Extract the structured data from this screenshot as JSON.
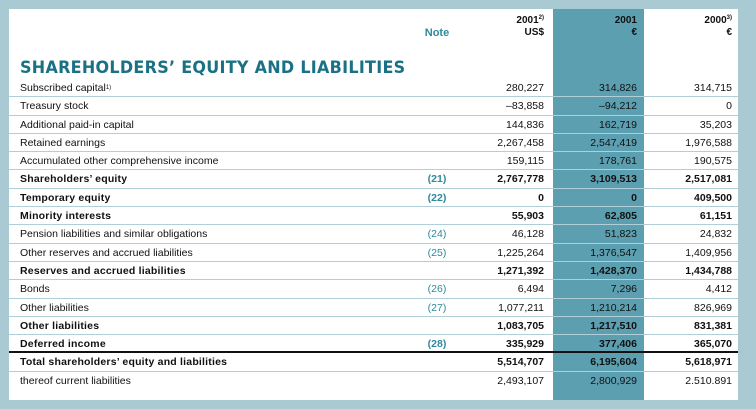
{
  "header": {
    "note": "Note",
    "columns": [
      {
        "year": "2001",
        "sup": "2)",
        "unit": "US$"
      },
      {
        "year": "2001",
        "sup": "",
        "unit": "€"
      },
      {
        "year": "2000",
        "sup": "3)",
        "unit": "€"
      }
    ]
  },
  "title": "SHAREHOLDERS’ EQUITY AND LIABILITIES",
  "rows": [
    {
      "label": "Subscribed capital",
      "sup": "1)",
      "note": "",
      "v1": "280,227",
      "v2": "314,826",
      "v3": "314,715",
      "bold": false
    },
    {
      "label": "Treasury stock",
      "sup": "",
      "note": "",
      "v1": "–83,858",
      "v2": "–94,212",
      "v3": "0",
      "bold": false
    },
    {
      "label": "Additional paid-in capital",
      "sup": "",
      "note": "",
      "v1": "144,836",
      "v2": "162,719",
      "v3": "35,203",
      "bold": false
    },
    {
      "label": "Retained earnings",
      "sup": "",
      "note": "",
      "v1": "2,267,458",
      "v2": "2,547,419",
      "v3": "1,976,588",
      "bold": false
    },
    {
      "label": "Accumulated other comprehensive income",
      "sup": "",
      "note": "",
      "v1": "159,115",
      "v2": "178,761",
      "v3": "190,575",
      "bold": false
    },
    {
      "label": "Shareholders’ equity",
      "sup": "",
      "note": "(21)",
      "v1": "2,767,778",
      "v2": "3,109,513",
      "v3": "2,517,081",
      "bold": true
    },
    {
      "label": "Temporary equity",
      "sup": "",
      "note": "(22)",
      "v1": "0",
      "v2": "0",
      "v3": "409,500",
      "bold": true
    },
    {
      "label": "Minority interests",
      "sup": "",
      "note": "",
      "v1": "55,903",
      "v2": "62,805",
      "v3": "61,151",
      "bold": true
    },
    {
      "label": "Pension liabilities and similar obligations",
      "sup": "",
      "note": "(24)",
      "v1": "46,128",
      "v2": "51,823",
      "v3": "24,832",
      "bold": false
    },
    {
      "label": "Other reserves and accrued liabilities",
      "sup": "",
      "note": "(25)",
      "v1": "1,225,264",
      "v2": "1,376,547",
      "v3": "1,409,956",
      "bold": false
    },
    {
      "label": "Reserves and accrued liabilities",
      "sup": "",
      "note": "",
      "v1": "1,271,392",
      "v2": "1,428,370",
      "v3": "1,434,788",
      "bold": true
    },
    {
      "label": "Bonds",
      "sup": "",
      "note": "(26)",
      "v1": "6,494",
      "v2": "7,296",
      "v3": "4,412",
      "bold": false
    },
    {
      "label": "Other liabilities",
      "sup": "",
      "note": "(27)",
      "v1": "1,077,211",
      "v2": "1,210,214",
      "v3": "826,969",
      "bold": false
    },
    {
      "label": "Other liabilities",
      "sup": "",
      "note": "",
      "v1": "1,083,705",
      "v2": "1,217,510",
      "v3": "831,381",
      "bold": true
    },
    {
      "label": "Deferred income",
      "sup": "",
      "note": "(28)",
      "v1": "335,929",
      "v2": "377,406",
      "v3": "365,070",
      "bold": true
    },
    {
      "label": "Total shareholders’ equity and liabilities",
      "sup": "",
      "note": "",
      "v1": "5,514,707",
      "v2": "6,195,604",
      "v3": "5,618,971",
      "bold": true
    },
    {
      "label": "thereof current liabilities",
      "sup": "",
      "note": "",
      "v1": "2,493,107",
      "v2": "2,800,929",
      "v3": "2.510.891",
      "bold": false
    }
  ]
}
